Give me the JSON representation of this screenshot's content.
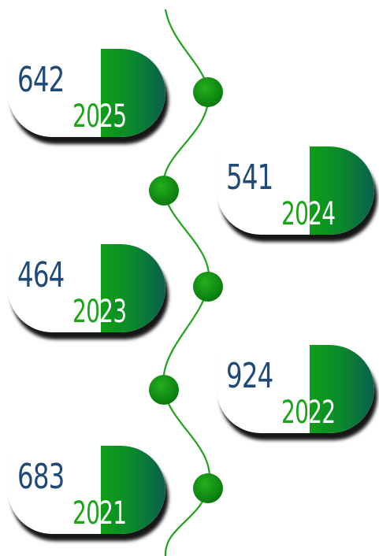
{
  "entries": [
    {
      "value": "642",
      "year": "2025"
    },
    {
      "value": "541",
      "year": "2024"
    },
    {
      "value": "464",
      "year": "2023"
    },
    {
      "value": "924",
      "year": "2022"
    },
    {
      "value": "683",
      "year": "2021"
    }
  ],
  "colors": {
    "connector": "#1fa31a",
    "dot": "#119411",
    "value_text": "#1f4a78",
    "year_text": "#1aa516",
    "tab_gradient_start": "#0e9f16",
    "tab_gradient_end": "#0a5f4e"
  }
}
